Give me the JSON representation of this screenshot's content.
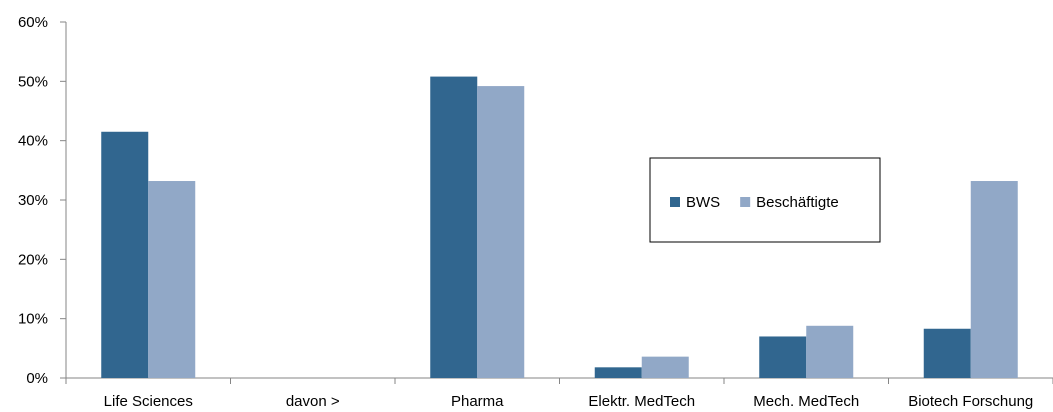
{
  "chart_data": {
    "type": "bar",
    "categories": [
      "Life Sciences",
      "davon >",
      "Pharma",
      "Elektr. MedTech",
      "Mech. MedTech",
      "Biotech Forschung"
    ],
    "series": [
      {
        "name": "BWS",
        "color": "#31668f",
        "values": [
          41.5,
          null,
          50.8,
          1.8,
          7.0,
          8.3
        ]
      },
      {
        "name": "Beschäftigte",
        "color": "#91a8c7",
        "values": [
          33.2,
          null,
          49.2,
          3.6,
          8.8,
          33.2
        ]
      }
    ],
    "ylim": [
      0,
      60
    ],
    "yticks": [
      0,
      10,
      20,
      30,
      40,
      50,
      60
    ],
    "ytick_labels": [
      "0%",
      "10%",
      "20%",
      "30%",
      "40%",
      "50%",
      "60%"
    ],
    "y_unit": "%",
    "grid": false,
    "legend_position": "center-right"
  }
}
